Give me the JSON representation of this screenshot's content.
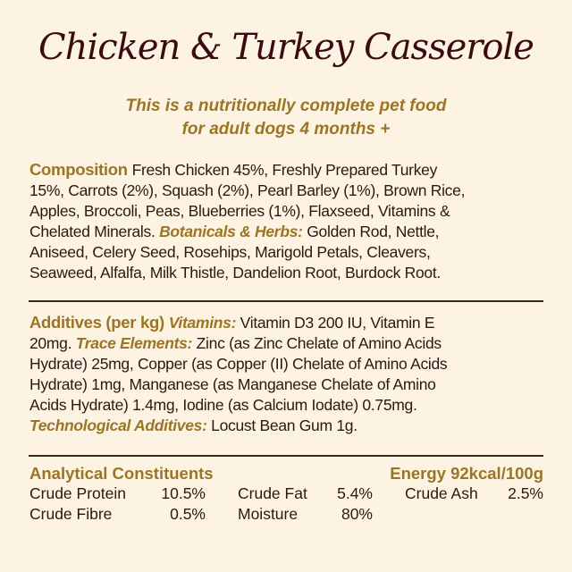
{
  "title": "Chicken & Turkey Casserole",
  "subtitle": [
    "This is a nutritionally complete pet food",
    "for adult dogs 4 months +"
  ],
  "colors": {
    "background": "#fdf3e3",
    "title": "#3a0c10",
    "accent": "#9b7526",
    "text": "#2b1812"
  },
  "composition": [
    [
      {
        "s": "h",
        "t": "Composition "
      },
      {
        "s": "t",
        "t": "Fresh Chicken 45%, Freshly Prepared Turkey"
      }
    ],
    [
      {
        "s": "t",
        "t": "15%, Carrots (2%), Squash (2%), Pearl Barley (1%), Brown Rice,"
      }
    ],
    [
      {
        "s": "t",
        "t": "Apples, Broccoli, Peas, Blueberries (1%), Flaxseed, Vitamins &"
      }
    ],
    [
      {
        "s": "t",
        "t": "Chelated Minerals. "
      },
      {
        "s": "i",
        "t": "Botanicals & Herbs:"
      },
      {
        "s": "t",
        "t": " Golden Rod, Nettle,"
      }
    ],
    [
      {
        "s": "t",
        "t": "Aniseed, Celery Seed, Rosehips, Marigold Petals, Cleavers,"
      }
    ],
    [
      {
        "s": "t",
        "t": "Seaweed, Alfalfa, Milk Thistle, Dandelion Root, Burdock Root."
      }
    ]
  ],
  "additives": [
    [
      {
        "s": "h",
        "t": "Additives (per kg) "
      },
      {
        "s": "i",
        "t": "Vitamins:"
      },
      {
        "s": "t",
        "t": " Vitamin D3 200 IU, Vitamin E"
      }
    ],
    [
      {
        "s": "t",
        "t": "20mg. "
      },
      {
        "s": "i",
        "t": "Trace Elements:"
      },
      {
        "s": "t",
        "t": " Zinc (as Zinc Chelate of Amino Acids"
      }
    ],
    [
      {
        "s": "t",
        "t": "Hydrate) 25mg, Copper (as Copper (II) Chelate of Amino Acids"
      }
    ],
    [
      {
        "s": "t",
        "t": "Hydrate) 1mg, Manganese (as Manganese Chelate of Amino"
      }
    ],
    [
      {
        "s": "t",
        "t": "Acids Hydrate) 1.4mg, Iodine (as Calcium Iodate) 0.75mg."
      }
    ],
    [
      {
        "s": "i",
        "t": "Technological Additives:"
      },
      {
        "s": "t",
        "t": " Locust Bean Gum 1g."
      }
    ]
  ],
  "analytical": {
    "heading": "Analytical Constituents",
    "energy": "Energy 92kcal/100g",
    "rows": [
      [
        {
          "label": "Crude Protein",
          "value": "10.5%"
        },
        {
          "label": "Crude Fat",
          "value": "5.4%"
        },
        {
          "label": "Crude Ash",
          "value": "2.5%"
        }
      ],
      [
        {
          "label": "Crude Fibre",
          "value": "0.5%"
        },
        {
          "label": "Moisture",
          "value": "80%"
        }
      ]
    ]
  }
}
